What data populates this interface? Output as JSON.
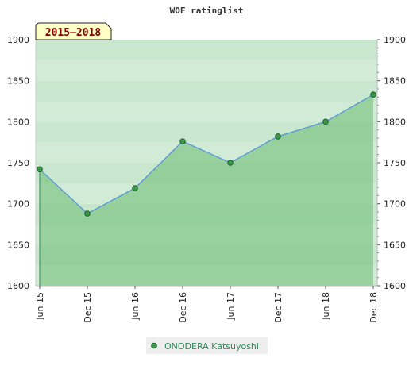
{
  "chart_data": {
    "type": "area",
    "title": "WOF ratinglist",
    "badge": "2015–2018",
    "categories": [
      "Jun 15",
      "Dec 15",
      "Jun 16",
      "Dec 16",
      "Jun 17",
      "Dec 17",
      "Jun 18",
      "Dec 18"
    ],
    "ylim": [
      1600,
      1900
    ],
    "yticks": [
      1600,
      1650,
      1700,
      1750,
      1800,
      1850,
      1900
    ],
    "grid": true,
    "series": [
      {
        "name": "ONODERA Katsuyoshi",
        "values": [
          1742,
          1688,
          1719,
          1776,
          1750,
          1782,
          1800,
          1833
        ]
      }
    ],
    "legend_position": "bottom-center",
    "colors": {
      "area_fill": "#4caf50",
      "line": "#5b9bd5",
      "marker": "#3a9a4a",
      "marker_stroke": "#1e5e2a",
      "badge_bg": "#ffffc8",
      "legend_bg": "#eeeeee"
    }
  }
}
